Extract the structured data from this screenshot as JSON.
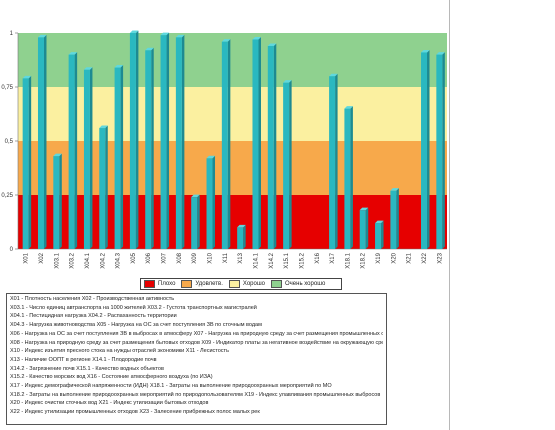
{
  "chart_data": {
    "type": "bar",
    "categories": [
      "X01",
      "X02",
      "X03.1",
      "X03.2",
      "X04.1",
      "X04.2",
      "X04.3",
      "X05",
      "X06",
      "X07",
      "X08",
      "X09",
      "X10",
      "X11",
      "X13",
      "X14.1",
      "X14.2",
      "X15.1",
      "X15.2",
      "X16",
      "X17",
      "X18.1",
      "X18.2",
      "X19",
      "X20",
      "X21",
      "X22",
      "X23"
    ],
    "values": [
      0.79,
      0.98,
      0.43,
      0.9,
      0.83,
      0.56,
      0.84,
      1.0,
      0.92,
      0.99,
      0.98,
      0.24,
      0.42,
      0.96,
      0.1,
      0.97,
      0.94,
      0.77,
      0.0,
      0.0,
      0.8,
      0.65,
      0.18,
      0.12,
      0.27,
      0.0,
      0.91,
      0.9
    ],
    "ylim": [
      0,
      1
    ],
    "yticks": [
      "0",
      "0,25",
      "0,5",
      "0,75",
      "1"
    ],
    "bands": [
      {
        "from": 0,
        "to": 0.25,
        "color": "#e60000"
      },
      {
        "from": 0.25,
        "to": 0.5,
        "color": "#f7a94b"
      },
      {
        "from": 0.5,
        "to": 0.75,
        "color": "#fbf0a0"
      },
      {
        "from": 0.75,
        "to": 1.0,
        "color": "#8fd18f"
      }
    ],
    "bar_color": "#2ab8c0",
    "legend": [
      {
        "label": "Плохо",
        "color": "#e60000"
      },
      {
        "label": "Удовлетв.",
        "color": "#f7a94b"
      },
      {
        "label": "Хорошо",
        "color": "#fbf0a0"
      },
      {
        "label": "Очень хорошо",
        "color": "#8fd18f"
      }
    ],
    "legend_position": "bottom"
  },
  "descriptions": [
    "X01 - Плотность населения    X02 - Производственная активность",
    "X03.1 - Число единиц автранспорта на 1000 жителей    X03.2 - Густота транспортных магистралей",
    "X04.1 - Пестицидная нагрузка    X04.2 - Распаханность территории",
    "X04.3 - Нагрузка животноводства    X05 - Нагрузка на ОС за счет поступления ЗВ по сточным водам",
    "X06 - Нагрузка на ОС за счет поступления ЗВ в выбросах в атмосферу    X07 - Нагрузка на природную среду за счет размещения промышленных отходов",
    "X08 - Нагрузка на природную среду за счет размещения бытовых отходов    X09 - Индикатор платы за негативное воздействие на окружающую среду",
    "X10 - Индекс изъятия пресного стока на нужды отраслей экономики    X11 - Лесистость",
    "X13 - Наличие ООПТ в регионе    X14.1 - Плодородие почв",
    "X14.2 - Загрязнение почв    X15.1 - Качество водных объектов",
    "X15.2 - Качество морских вод    X16 - Состояние атмосферного воздуха (по ИЗА)",
    "X17 - Индекс демографической напряженности (ИДН)    X18.1 - Затраты на выполнение природоохранных мероприятий по МО",
    "X18.2 - Затраты на выполнение природоохранных мероприятий по природопользователям    X19 - Индекс улавливания промышленных выбросов",
    "X20 - Индекс очистки сточных вод    X21 - Индекс утилизации бытовых отходов",
    "X22 - Индекс утилизации промышленных отходов    X23 - Залесение прибрежных полос малых рек"
  ]
}
